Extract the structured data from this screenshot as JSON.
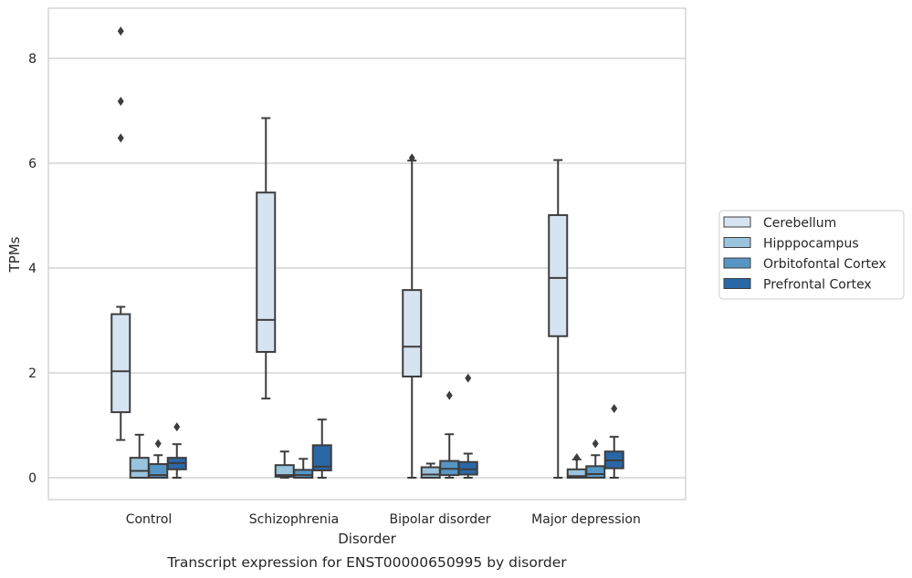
{
  "chart_data": {
    "type": "box",
    "caption": "Transcript expression for ENST00000650995 by disorder",
    "xlabel": "Disorder",
    "ylabel": "TPMs",
    "ylim": [
      -0.4,
      9.0
    ],
    "yticks": [
      0,
      2,
      4,
      6,
      8
    ],
    "grid": "horizontal",
    "legend_position": "right",
    "categories": [
      "Control",
      "Schizophrenia",
      "Bipolar disorder",
      "Major depression"
    ],
    "series": [
      {
        "name": "Cerebellum",
        "color": "#d6e4f2",
        "boxes": [
          {
            "whisker_low": 0.72,
            "q1": 1.25,
            "median": 2.03,
            "q3": 3.12,
            "whisker_high": 3.26,
            "outliers": [
              6.48,
              7.18,
              8.52
            ]
          },
          {
            "whisker_low": 1.51,
            "q1": 2.4,
            "median": 3.01,
            "q3": 5.44,
            "whisker_high": 6.86,
            "outliers": []
          },
          {
            "whisker_low": 0.0,
            "q1": 1.93,
            "median": 2.5,
            "q3": 3.58,
            "whisker_high": 6.05,
            "outliers": [
              6.1
            ]
          },
          {
            "whisker_low": 0.0,
            "q1": 2.7,
            "median": 3.81,
            "q3": 5.01,
            "whisker_high": 6.06,
            "outliers": []
          }
        ]
      },
      {
        "name": "Hipppocampus",
        "color": "#9ac3de",
        "boxes": [
          {
            "whisker_low": 0.0,
            "q1": 0.0,
            "median": 0.13,
            "q3": 0.38,
            "whisker_high": 0.82,
            "outliers": []
          },
          {
            "whisker_low": 0.0,
            "q1": 0.02,
            "median": 0.05,
            "q3": 0.24,
            "whisker_high": 0.5,
            "outliers": []
          },
          {
            "whisker_low": 0.0,
            "q1": 0.0,
            "median": 0.06,
            "q3": 0.2,
            "whisker_high": 0.27,
            "outliers": []
          },
          {
            "whisker_low": 0.0,
            "q1": 0.0,
            "median": 0.03,
            "q3": 0.16,
            "whisker_high": 0.35,
            "outliers": [
              0.38
            ]
          }
        ]
      },
      {
        "name": "Orbitofontal Cortex",
        "color": "#5696c4",
        "boxes": [
          {
            "whisker_low": 0.0,
            "q1": 0.0,
            "median": 0.05,
            "q3": 0.26,
            "whisker_high": 0.43,
            "outliers": [
              0.65
            ]
          },
          {
            "whisker_low": 0.0,
            "q1": 0.0,
            "median": 0.05,
            "q3": 0.15,
            "whisker_high": 0.36,
            "outliers": []
          },
          {
            "whisker_low": 0.0,
            "q1": 0.05,
            "median": 0.17,
            "q3": 0.32,
            "whisker_high": 0.83,
            "outliers": [
              1.57
            ]
          },
          {
            "whisker_low": 0.0,
            "q1": 0.0,
            "median": 0.07,
            "q3": 0.22,
            "whisker_high": 0.43,
            "outliers": [
              0.65
            ]
          }
        ]
      },
      {
        "name": "Prefrontal Cortex",
        "color": "#2a67a6",
        "boxes": [
          {
            "whisker_low": 0.0,
            "q1": 0.16,
            "median": 0.28,
            "q3": 0.38,
            "whisker_high": 0.64,
            "outliers": [
              0.97
            ]
          },
          {
            "whisker_low": 0.0,
            "q1": 0.14,
            "median": 0.21,
            "q3": 0.62,
            "whisker_high": 1.11,
            "outliers": []
          },
          {
            "whisker_low": 0.0,
            "q1": 0.06,
            "median": 0.16,
            "q3": 0.3,
            "whisker_high": 0.46,
            "outliers": [
              1.9
            ]
          },
          {
            "whisker_low": 0.0,
            "q1": 0.18,
            "median": 0.33,
            "q3": 0.5,
            "whisker_high": 0.78,
            "outliers": [
              1.32
            ]
          }
        ]
      }
    ]
  }
}
